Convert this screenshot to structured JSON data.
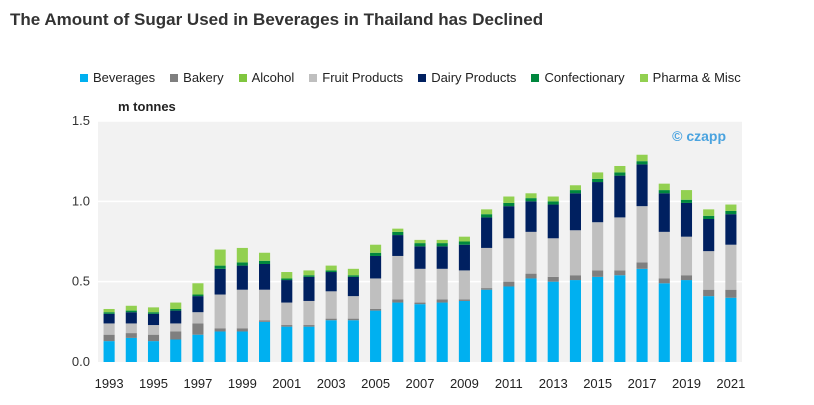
{
  "chart_data": {
    "type": "bar",
    "stacked": true,
    "title": "The Amount of Sugar Used in Beverages in Thailand has Declined",
    "ylabel": "m tonnes",
    "watermark": "© czapp",
    "ylim": [
      0,
      1.5
    ],
    "yticks": [
      0.0,
      0.5,
      1.0,
      1.5
    ],
    "ytick_labels": [
      "0.0",
      "0.5",
      "1.0",
      "1.5"
    ],
    "categories": [
      "1993",
      "1994",
      "1995",
      "1996",
      "1997",
      "1998",
      "1999",
      "2000",
      "2001",
      "2002",
      "2003",
      "2004",
      "2005",
      "2006",
      "2007",
      "2008",
      "2009",
      "2010",
      "2011",
      "2012",
      "2013",
      "2014",
      "2015",
      "2016",
      "2017",
      "2018",
      "2019",
      "2020",
      "2021"
    ],
    "xtick_labels": [
      "1993",
      "1995",
      "1997",
      "1999",
      "2001",
      "2003",
      "2005",
      "2007",
      "2009",
      "2011",
      "2013",
      "2015",
      "2017",
      "2019",
      "2021"
    ],
    "series": [
      {
        "name": "Beverages",
        "color": "#00b0f0",
        "values": [
          0.13,
          0.15,
          0.13,
          0.14,
          0.17,
          0.19,
          0.19,
          0.25,
          0.22,
          0.22,
          0.26,
          0.26,
          0.32,
          0.37,
          0.36,
          0.37,
          0.38,
          0.45,
          0.47,
          0.52,
          0.5,
          0.51,
          0.53,
          0.54,
          0.58,
          0.49,
          0.51,
          0.41,
          0.4
        ]
      },
      {
        "name": "Bakery",
        "color": "#7f7f7f",
        "values": [
          0.04,
          0.03,
          0.04,
          0.05,
          0.07,
          0.02,
          0.02,
          0.01,
          0.01,
          0.01,
          0.01,
          0.01,
          0.01,
          0.02,
          0.01,
          0.02,
          0.01,
          0.01,
          0.03,
          0.03,
          0.03,
          0.03,
          0.04,
          0.03,
          0.04,
          0.03,
          0.03,
          0.04,
          0.05
        ]
      },
      {
        "name": "Alcohol",
        "color": "#80c63f",
        "values": [
          0,
          0,
          0,
          0,
          0,
          0,
          0,
          0,
          0,
          0,
          0,
          0,
          0,
          0,
          0,
          0,
          0,
          0,
          0,
          0,
          0,
          0,
          0,
          0,
          0,
          0,
          0,
          0,
          0
        ]
      },
      {
        "name": "Fruit Products",
        "color": "#bfbfbf",
        "values": [
          0.07,
          0.06,
          0.06,
          0.05,
          0.07,
          0.21,
          0.24,
          0.19,
          0.14,
          0.15,
          0.17,
          0.14,
          0.19,
          0.27,
          0.21,
          0.19,
          0.18,
          0.25,
          0.27,
          0.26,
          0.24,
          0.28,
          0.3,
          0.33,
          0.35,
          0.29,
          0.24,
          0.24,
          0.28
        ]
      },
      {
        "name": "Dairy Products",
        "color": "#002060",
        "values": [
          0.06,
          0.07,
          0.07,
          0.08,
          0.1,
          0.16,
          0.15,
          0.16,
          0.14,
          0.15,
          0.12,
          0.12,
          0.14,
          0.13,
          0.14,
          0.14,
          0.16,
          0.19,
          0.2,
          0.19,
          0.21,
          0.23,
          0.25,
          0.26,
          0.26,
          0.24,
          0.21,
          0.2,
          0.19
        ]
      },
      {
        "name": "Confectionary",
        "color": "#00873e",
        "values": [
          0.01,
          0.01,
          0.01,
          0.01,
          0.01,
          0.02,
          0.02,
          0.02,
          0.01,
          0.01,
          0.01,
          0.01,
          0.02,
          0.02,
          0.02,
          0.02,
          0.02,
          0.02,
          0.02,
          0.02,
          0.02,
          0.02,
          0.02,
          0.02,
          0.02,
          0.02,
          0.02,
          0.02,
          0.02
        ]
      },
      {
        "name": "Pharma & Misc",
        "color": "#92d050",
        "values": [
          0.02,
          0.03,
          0.03,
          0.04,
          0.07,
          0.1,
          0.09,
          0.05,
          0.04,
          0.03,
          0.03,
          0.04,
          0.05,
          0.02,
          0.02,
          0.02,
          0.03,
          0.03,
          0.04,
          0.03,
          0.03,
          0.03,
          0.04,
          0.04,
          0.04,
          0.04,
          0.06,
          0.04,
          0.04
        ]
      }
    ]
  }
}
